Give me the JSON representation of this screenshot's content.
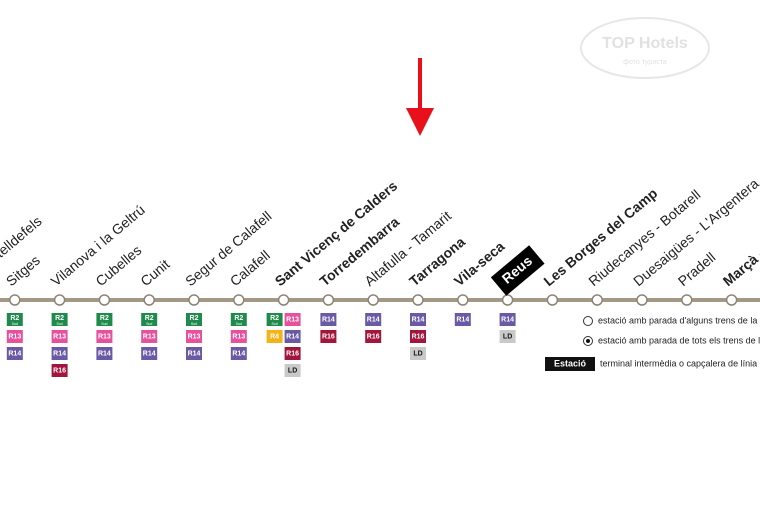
{
  "stations": [
    {
      "label": "de Castelldefels",
      "bold": false,
      "columns": []
    },
    {
      "label": "Sitges",
      "bold": false,
      "columns": [
        [
          {
            "code": "R2",
            "note": "Sud"
          },
          {
            "code": "R13"
          },
          {
            "code": "R14"
          }
        ]
      ]
    },
    {
      "label": "Vilanova i la Geltrú",
      "bold": false,
      "columns": [
        [
          {
            "code": "R2",
            "note": "Sud"
          },
          {
            "code": "R13"
          },
          {
            "code": "R14"
          },
          {
            "code": "R16"
          }
        ]
      ]
    },
    {
      "label": "Cubelles",
      "bold": false,
      "columns": [
        [
          {
            "code": "R2",
            "note": "Sud"
          },
          {
            "code": "R13"
          },
          {
            "code": "R14"
          }
        ]
      ]
    },
    {
      "label": "Cunit",
      "bold": false,
      "columns": [
        [
          {
            "code": "R2",
            "note": "Sud"
          },
          {
            "code": "R13"
          },
          {
            "code": "R14"
          }
        ]
      ]
    },
    {
      "label": "Segur de Calafell",
      "bold": false,
      "columns": [
        [
          {
            "code": "R2",
            "note": "Sud"
          },
          {
            "code": "R13"
          },
          {
            "code": "R14"
          }
        ]
      ]
    },
    {
      "label": "Calafell",
      "bold": false,
      "columns": [
        [
          {
            "code": "R2",
            "note": "Sud"
          },
          {
            "code": "R13"
          },
          {
            "code": "R14"
          }
        ]
      ]
    },
    {
      "label": "Sant Vicenç de Calders",
      "bold": true,
      "columns": [
        [
          {
            "code": "R2",
            "note": "Sud"
          },
          {
            "code": "R4"
          }
        ],
        [
          {
            "code": "R13"
          },
          {
            "code": "R14"
          },
          {
            "code": "R16"
          },
          {
            "code": "LD"
          }
        ]
      ]
    },
    {
      "label": "Torredembarra",
      "bold": true,
      "columns": [
        [
          {
            "code": "R14"
          },
          {
            "code": "R16"
          }
        ]
      ]
    },
    {
      "label": "Altafulla - Tamarit",
      "bold": false,
      "columns": [
        [
          {
            "code": "R14"
          },
          {
            "code": "R16"
          }
        ]
      ]
    },
    {
      "label": "Tarragona",
      "bold": true,
      "columns": [
        [
          {
            "code": "R14"
          },
          {
            "code": "R16"
          },
          {
            "code": "LD"
          }
        ]
      ]
    },
    {
      "label": "Vila-seca",
      "bold": true,
      "columns": [
        [
          {
            "code": "R14"
          }
        ]
      ]
    },
    {
      "label": "Reus",
      "bold": true,
      "terminal": true,
      "columns": [
        [
          {
            "code": "R14"
          },
          {
            "code": "LD"
          }
        ]
      ]
    },
    {
      "label": "Les Borges del Camp",
      "bold": true,
      "columns": []
    },
    {
      "label": "Riudecanyes - Botarell",
      "bold": false,
      "columns": []
    },
    {
      "label": "Duesaigües - L'Argentera",
      "bold": false,
      "columns": []
    },
    {
      "label": "Pradell",
      "bold": false,
      "columns": []
    },
    {
      "label": "Marçà - Falset",
      "bold": true,
      "columns": []
    }
  ],
  "line_colors": {
    "R2": "#1f8a4c",
    "R4": "#f2b418",
    "R13": "#e6519c",
    "R14": "#6a5aa6",
    "R16": "#a2153c",
    "LD": "#c9c9c9"
  },
  "legend": {
    "some_trains": "estació amb parada d'alguns trens de la línia",
    "all_trains": "estació amb parada de tots els trens de la línia",
    "terminal_box": "Estació",
    "terminal": "terminal intermèdia o capçalera de línia"
  },
  "watermark": {
    "title": "TOP Hotels",
    "subtitle": "фото туриста"
  }
}
